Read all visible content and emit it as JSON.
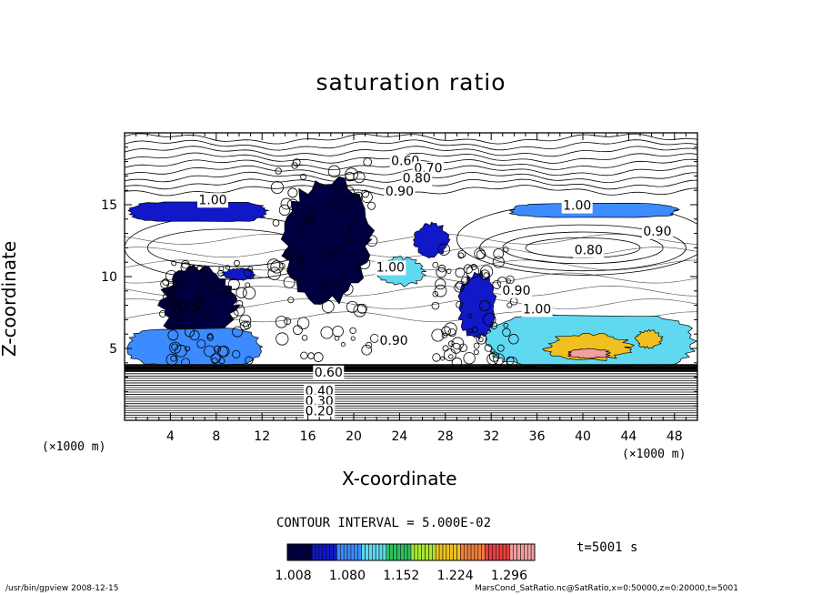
{
  "chart_data": {
    "type": "contour",
    "title": "saturation ratio",
    "xlabel": "X-coordinate",
    "ylabel": "Z-coordinate",
    "x_unit": "(×1000 m)",
    "y_unit": "(×1000 m)",
    "xlim": [
      0,
      50
    ],
    "ylim": [
      0,
      20
    ],
    "x_ticks": [
      4,
      8,
      12,
      16,
      20,
      24,
      28,
      32,
      36,
      40,
      44,
      48
    ],
    "y_ticks": [
      5,
      10,
      15
    ],
    "contour_interval_label": "CONTOUR INTERVAL = 5.000E-02",
    "time_label": "t=5001 s",
    "colorbar": {
      "colors": [
        "#000040",
        "#1018c8",
        "#3c8cff",
        "#60d8f0",
        "#30c060",
        "#a8e830",
        "#f0c020",
        "#f08040",
        "#e84040",
        "#f0a0a0"
      ],
      "tick_labels": [
        "1.008",
        "1.080",
        "1.152",
        "1.224",
        "1.296"
      ],
      "range": [
        1.0,
        1.33
      ]
    },
    "contour_labels": [
      {
        "text": "0.60",
        "x": 24.5,
        "z": 18.0
      },
      {
        "text": "0.70",
        "x": 26.5,
        "z": 17.5
      },
      {
        "text": "0.80",
        "x": 25.5,
        "z": 16.8
      },
      {
        "text": "0.90",
        "x": 24.0,
        "z": 15.9
      },
      {
        "text": "1.00",
        "x": 7.7,
        "z": 15.3
      },
      {
        "text": "1.00",
        "x": 39.5,
        "z": 14.9
      },
      {
        "text": "0.90",
        "x": 46.5,
        "z": 13.1
      },
      {
        "text": "0.80",
        "x": 40.5,
        "z": 11.8
      },
      {
        "text": "1.00",
        "x": 23.2,
        "z": 10.6
      },
      {
        "text": "0.90",
        "x": 34.2,
        "z": 9.0
      },
      {
        "text": "1.00",
        "x": 36.0,
        "z": 7.7
      },
      {
        "text": "0.90",
        "x": 23.5,
        "z": 5.5
      },
      {
        "text": "0.60",
        "x": 17.8,
        "z": 3.3
      },
      {
        "text": "0.40",
        "x": 17.0,
        "z": 2.0
      },
      {
        "text": "0.30",
        "x": 17.0,
        "z": 1.3
      },
      {
        "text": "0.20",
        "x": 17.0,
        "z": 0.6
      }
    ],
    "filled_regions": [
      {
        "level": 1.06,
        "shape": "band",
        "x": [
          0.3,
          12.5
        ],
        "z": [
          13.8,
          15.2
        ]
      },
      {
        "level": 1.08,
        "shape": "band",
        "x": [
          33.5,
          48.5
        ],
        "z": [
          14.1,
          15.1
        ]
      },
      {
        "level": 1.05,
        "shape": "blob",
        "x": [
          25.2,
          28.4
        ],
        "z": [
          11.3,
          13.8
        ]
      },
      {
        "level": 1.1,
        "shape": "blob",
        "x": [
          21.8,
          26.4
        ],
        "z": [
          9.3,
          11.4
        ]
      },
      {
        "level": 1.04,
        "shape": "blob",
        "x": [
          8.5,
          11.5
        ],
        "z": [
          9.7,
          10.6
        ]
      },
      {
        "level": 1.02,
        "shape": "tower",
        "x": [
          13.5,
          21.8
        ],
        "z": [
          8.0,
          17.2
        ]
      },
      {
        "level": 1.03,
        "shape": "blob",
        "x": [
          3.0,
          10.0
        ],
        "z": [
          5.2,
          10.8
        ]
      },
      {
        "level": 1.04,
        "shape": "blob",
        "x": [
          29.0,
          32.5
        ],
        "z": [
          5.5,
          10.5
        ]
      },
      {
        "level": 1.09,
        "shape": "band",
        "x": [
          0.1,
          12.0
        ],
        "z": [
          3.8,
          6.4
        ]
      },
      {
        "level": 1.1,
        "shape": "band",
        "x": [
          31.5,
          50
        ],
        "z": [
          3.7,
          7.3
        ]
      },
      {
        "level": 1.2,
        "shape": "blob",
        "x": [
          36.5,
          44.5
        ],
        "z": [
          4.1,
          6.1
        ]
      },
      {
        "level": 1.3,
        "shape": "blob",
        "x": [
          38.5,
          42.5
        ],
        "z": [
          4.3,
          5.0
        ]
      },
      {
        "level": 1.23,
        "shape": "blob",
        "x": [
          44.5,
          47.0
        ],
        "z": [
          5.0,
          6.3
        ]
      }
    ]
  },
  "footer": {
    "left": "/usr/bin/gpview   2008-12-15",
    "right": "MarsCond_SatRatio.nc@SatRatio,x=0:50000,z=0:20000,t=5001"
  }
}
